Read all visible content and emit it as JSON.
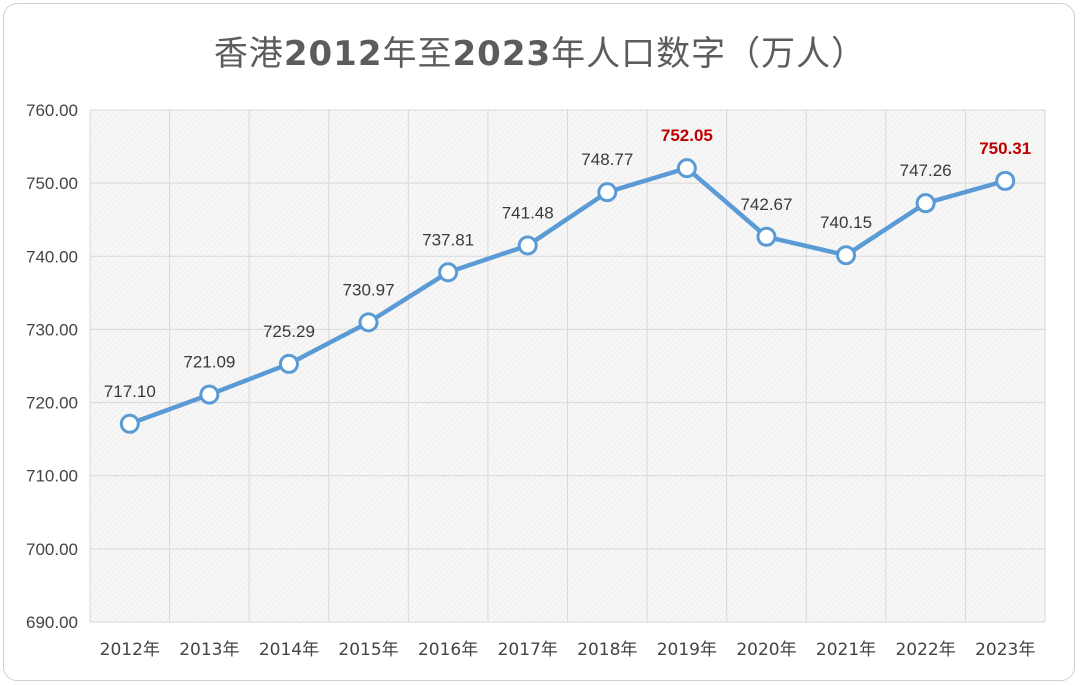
{
  "title": {
    "part1": "香港",
    "part2": "2012",
    "part3": "年至",
    "part4": "2023",
    "part5": "年人口数字（万人）"
  },
  "colors": {
    "line": "#5b9bd5",
    "marker_fill": "#ffffff",
    "highlight_label": "#c00000",
    "grid": "#d9d9d9",
    "plot_bg": "#f4f4f4"
  },
  "chart_data": {
    "type": "line",
    "title": "香港2012年至2023年人口数字（万人）",
    "xlabel": "",
    "ylabel": "",
    "categories": [
      "2012年",
      "2013年",
      "2014年",
      "2015年",
      "2016年",
      "2017年",
      "2018年",
      "2019年",
      "2020年",
      "2021年",
      "2022年",
      "2023年"
    ],
    "values": [
      717.1,
      721.09,
      725.29,
      730.97,
      737.81,
      741.48,
      748.77,
      752.05,
      742.67,
      740.15,
      747.26,
      750.31
    ],
    "value_labels": [
      "717.10",
      "721.09",
      "725.29",
      "730.97",
      "737.81",
      "741.48",
      "748.77",
      "752.05",
      "742.67",
      "740.15",
      "747.26",
      "750.31"
    ],
    "highlighted": [
      "2019年",
      "2023年"
    ],
    "ylim": [
      690,
      760
    ],
    "yticks": [
      690,
      700,
      710,
      720,
      730,
      740,
      750,
      760
    ],
    "ytick_labels": [
      "690.00",
      "700.00",
      "710.00",
      "720.00",
      "730.00",
      "740.00",
      "750.00",
      "760.00"
    ],
    "grid": true,
    "legend": "none"
  }
}
